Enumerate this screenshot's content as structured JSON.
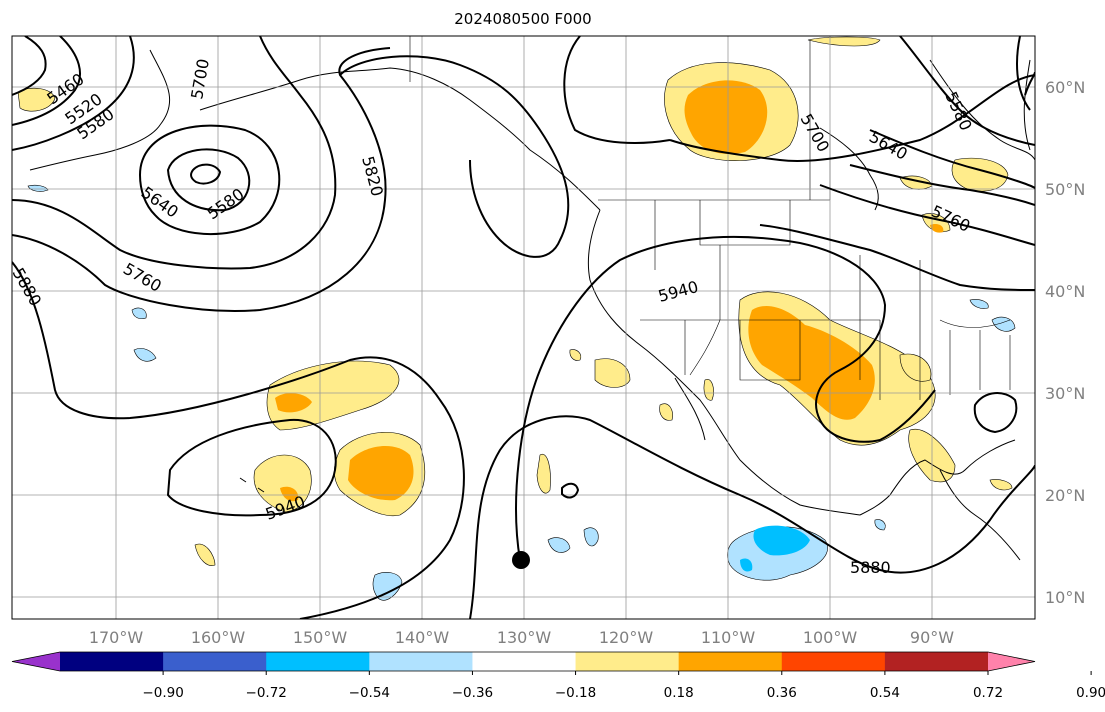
{
  "title": "2024080500 F000",
  "lon_labels": [
    "170°W",
    "160°W",
    "150°W",
    "140°W",
    "130°W",
    "120°W",
    "110°W",
    "100°W",
    "90°W"
  ],
  "lat_labels": [
    "60°N",
    "50°N",
    "40°N",
    "30°N",
    "20°N",
    "10°N"
  ],
  "contour_labels": [
    "5460",
    "5520",
    "5580",
    "5700",
    "5640",
    "5580",
    "5820",
    "5760",
    "5880",
    "5940",
    "5940",
    "5880",
    "5700",
    "5640",
    "5580",
    "5760"
  ],
  "colorbar": {
    "ticks": [
      "−0.90",
      "−0.72",
      "−0.54",
      "−0.36",
      "−0.18",
      "0.18",
      "0.36",
      "0.54",
      "0.72",
      "0.90"
    ],
    "colors": [
      "#9932cc",
      "#000080",
      "#3a5fcd",
      "#00bfff",
      "#b0e2ff",
      "#ffffff",
      "#ffec8b",
      "#ffa500",
      "#ff4500",
      "#b22222",
      "#ff82ab"
    ]
  },
  "colors": {
    "pos_light": "#ffec8b",
    "pos_mid": "#ffa500",
    "neg_light": "#b0e2ff",
    "neg_mid": "#00bfff",
    "grid": "#9a9a9a",
    "contour": "#000000"
  }
}
